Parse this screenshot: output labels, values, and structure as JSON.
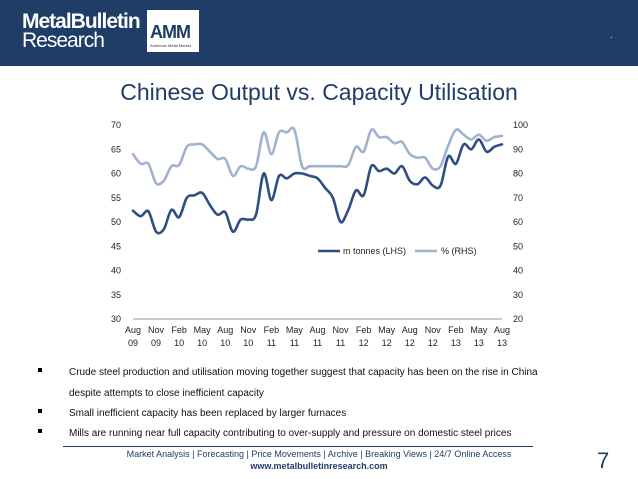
{
  "header": {
    "brand_line1": "MetalBulletin",
    "brand_line2": "Research",
    "amm_logo": "AMM",
    "amm_sub": "American Metal Market",
    "dot": "."
  },
  "slide": {
    "title": "Chinese Output vs. Capacity Utilisation",
    "page_number": "7"
  },
  "bullets": [
    "Crude steel production and utilisation moving together suggest that capacity has been on the rise in  China",
    "despite attempts to close inefficient capacity",
    "Small inefficient capacity has been replaced by larger furnaces",
    "Mills are running near full capacity contributing to over-supply and pressure on domestic steel prices"
  ],
  "footer": {
    "links": "Market Analysis | Forecasting | Price Movements | Archive | Breaking Views | 24/7 Online Access",
    "url": "www.metalbulletinresearch.com"
  },
  "colors": {
    "brand": "#1f3d66",
    "lhs_series": "#2e4f7f",
    "rhs_series": "#9fb3cf"
  },
  "chart_data": {
    "type": "line",
    "legend_position": "inside-right",
    "grid": false,
    "x_ticks": [
      [
        "Aug",
        "09"
      ],
      [
        "Nov",
        "09"
      ],
      [
        "Feb",
        "10"
      ],
      [
        "May",
        "10"
      ],
      [
        "Aug",
        "10"
      ],
      [
        "Nov",
        "10"
      ],
      [
        "Feb",
        "11"
      ],
      [
        "May",
        "11"
      ],
      [
        "Aug",
        "11"
      ],
      [
        "Nov",
        "11"
      ],
      [
        "Feb",
        "12"
      ],
      [
        "May",
        "12"
      ],
      [
        "Aug",
        "12"
      ],
      [
        "Nov",
        "12"
      ],
      [
        "Feb",
        "13"
      ],
      [
        "May",
        "13"
      ],
      [
        "Aug",
        "13"
      ]
    ],
    "y_left": {
      "min": 30,
      "max": 70,
      "ticks": [
        30,
        35,
        40,
        45,
        50,
        55,
        60,
        65,
        70
      ]
    },
    "y_right": {
      "min": 20,
      "max": 100,
      "ticks": [
        20,
        30,
        40,
        50,
        60,
        70,
        80,
        90,
        100
      ]
    },
    "series": [
      {
        "name": "m tonnes (LHS)",
        "axis": "left",
        "values": [
          52.3,
          51.2,
          52.2,
          48.0,
          48.5,
          52.5,
          51.0,
          55.0,
          55.5,
          56.0,
          53.5,
          51.5,
          52.0,
          48.0,
          50.5,
          50.5,
          51.5,
          60.0,
          54.5,
          59.5,
          59.0,
          60.0,
          60.0,
          59.5,
          59.0,
          57.0,
          55.0,
          50.0,
          52.5,
          56.5,
          55.5,
          61.5,
          60.5,
          61.0,
          60.0,
          61.5,
          58.5,
          57.8,
          59.2,
          57.5,
          57.5,
          63.5,
          62.0,
          66.0,
          65.0,
          67.0,
          64.5,
          65.5,
          66.0
        ]
      },
      {
        "name": "% (RHS)",
        "axis": "right",
        "values": [
          88.0,
          84.0,
          84.0,
          76.0,
          77.0,
          83.0,
          83.5,
          91.0,
          92.0,
          92.0,
          89.0,
          86.0,
          86.0,
          79.0,
          83.0,
          82.0,
          83.0,
          97.0,
          88.0,
          97.0,
          97.0,
          98.0,
          83.0,
          83.0,
          83.0,
          83.0,
          83.0,
          83.0,
          83.5,
          91.0,
          89.0,
          98.0,
          95.0,
          95.0,
          92.5,
          93.0,
          88.0,
          86.5,
          86.5,
          82.0,
          83.0,
          91.5,
          98.0,
          96.0,
          94.0,
          96.0,
          93.5,
          95.0,
          95.5
        ]
      }
    ]
  }
}
